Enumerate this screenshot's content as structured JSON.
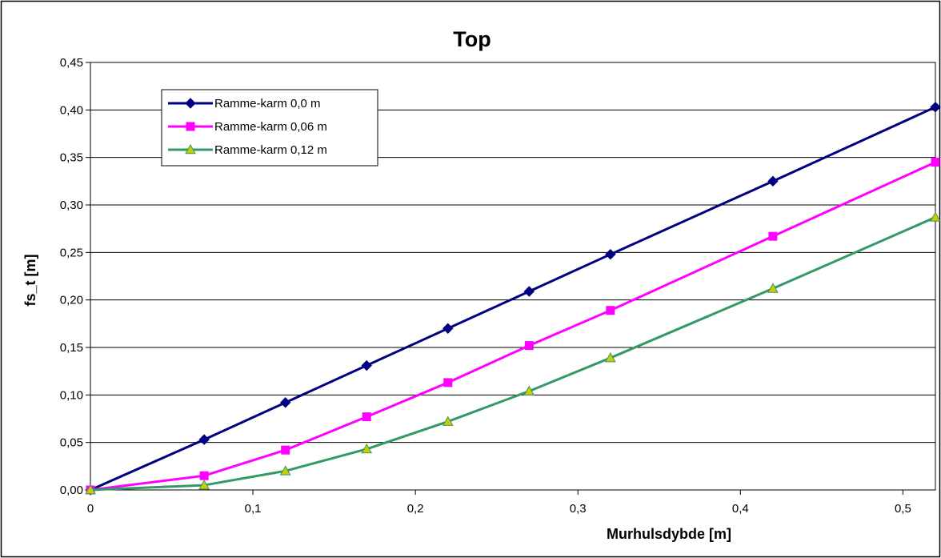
{
  "chart_data": {
    "type": "line",
    "title": "Top",
    "xlabel": "Murhulsdybde  [m]",
    "ylabel": "fs_t  [m]",
    "xlim": [
      0,
      0.52
    ],
    "ylim": [
      0,
      0.45
    ],
    "x_ticks": [
      "0",
      "0,1",
      "0,2",
      "0,3",
      "0,4",
      "0,5"
    ],
    "y_ticks": [
      "0,00",
      "0,05",
      "0,10",
      "0,15",
      "0,20",
      "0,25",
      "0,30",
      "0,35",
      "0,40",
      "0,45"
    ],
    "grid": "horizontal",
    "legend_position": "top-left",
    "series": [
      {
        "name": "Ramme-karm 0,0 m",
        "color": "#000080",
        "marker": "diamond",
        "x": [
          0,
          0.07,
          0.12,
          0.17,
          0.22,
          0.27,
          0.32,
          0.42,
          0.52
        ],
        "values": [
          0.0,
          0.053,
          0.092,
          0.131,
          0.17,
          0.209,
          0.248,
          0.325,
          0.403
        ]
      },
      {
        "name": "Ramme-karm 0,06 m",
        "color": "#ff00ff",
        "marker": "square",
        "x": [
          0,
          0.07,
          0.12,
          0.17,
          0.22,
          0.27,
          0.32,
          0.42,
          0.52
        ],
        "values": [
          0.0,
          0.015,
          0.042,
          0.077,
          0.113,
          0.152,
          0.189,
          0.267,
          0.345
        ]
      },
      {
        "name": "Ramme-karm 0,12 m",
        "color": "#339966",
        "marker": "triangle",
        "marker_fill": "#cccc00",
        "x": [
          0,
          0.07,
          0.12,
          0.17,
          0.22,
          0.27,
          0.32,
          0.42,
          0.52
        ],
        "values": [
          0.0,
          0.005,
          0.02,
          0.043,
          0.072,
          0.104,
          0.139,
          0.212,
          0.287
        ]
      }
    ]
  }
}
